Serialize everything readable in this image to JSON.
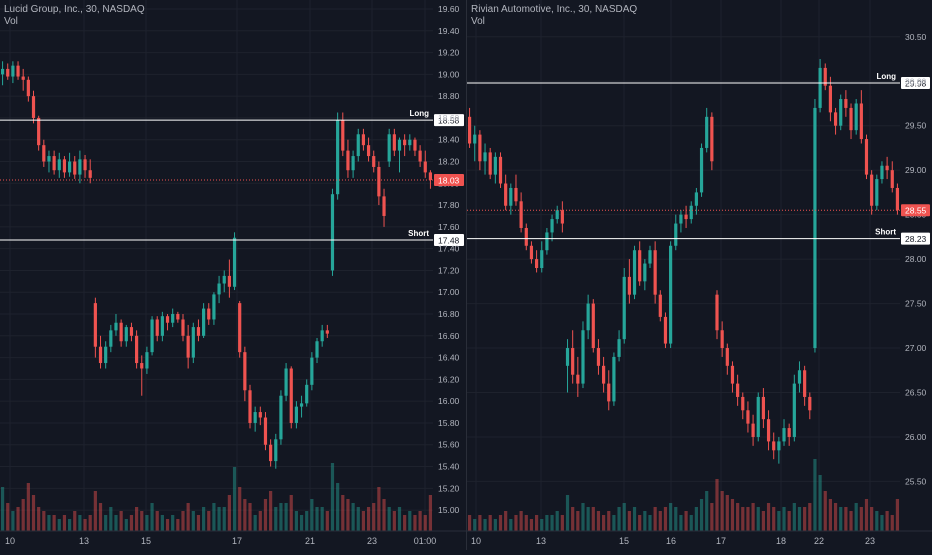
{
  "chart_data": [
    {
      "type": "candlestick",
      "title": "Lucid Group, Inc., 30, NASDAQ",
      "volume_label": "Vol",
      "ylim": [
        14.9,
        19.6
      ],
      "y_ticks": [
        "19.60",
        "19.40",
        "19.20",
        "19.00",
        "18.80",
        "18.60",
        "18.40",
        "18.20",
        "18.00",
        "17.80",
        "17.60",
        "17.40",
        "17.20",
        "17.00",
        "16.80",
        "16.60",
        "16.40",
        "16.20",
        "16.00",
        "15.80",
        "15.60",
        "15.40",
        "15.20",
        "15.00"
      ],
      "x_ticks": [
        "10",
        "13",
        "15",
        "17",
        "21",
        "23",
        "01:00"
      ],
      "levels": [
        {
          "name": "Long",
          "value": 18.58
        },
        {
          "name": "Short",
          "value": 17.48
        }
      ],
      "last_price": 18.03,
      "last_price_label": "18.03",
      "long_label": "18.58",
      "short_label": "17.48",
      "colors": {
        "up": "#26a69a",
        "down": "#ef5350"
      },
      "ohlc": [
        [
          19.0,
          19.12,
          18.9,
          19.05
        ],
        [
          19.05,
          19.1,
          18.95,
          18.98
        ],
        [
          18.98,
          19.12,
          18.92,
          19.08
        ],
        [
          19.08,
          19.12,
          18.95,
          18.98
        ],
        [
          18.98,
          19.05,
          18.85,
          18.95
        ],
        [
          18.95,
          18.98,
          18.75,
          18.8
        ],
        [
          18.8,
          18.85,
          18.55,
          18.6
        ],
        [
          18.6,
          18.62,
          18.3,
          18.35
        ],
        [
          18.35,
          18.4,
          18.15,
          18.2
        ],
        [
          18.2,
          18.3,
          18.1,
          18.25
        ],
        [
          18.25,
          18.3,
          18.08,
          18.12
        ],
        [
          18.12,
          18.28,
          18.05,
          18.22
        ],
        [
          18.22,
          18.25,
          18.05,
          18.1
        ],
        [
          18.1,
          18.28,
          18.06,
          18.2
        ],
        [
          18.2,
          18.25,
          18.04,
          18.08
        ],
        [
          18.08,
          18.3,
          18.0,
          18.22
        ],
        [
          18.22,
          18.26,
          18.05,
          18.12
        ],
        [
          18.12,
          18.22,
          18.0,
          18.05
        ],
        [
          16.9,
          16.95,
          16.4,
          16.5
        ],
        [
          16.5,
          16.6,
          16.3,
          16.35
        ],
        [
          16.35,
          16.55,
          16.3,
          16.5
        ],
        [
          16.5,
          16.7,
          16.45,
          16.65
        ],
        [
          16.65,
          16.8,
          16.6,
          16.72
        ],
        [
          16.72,
          16.75,
          16.5,
          16.55
        ],
        [
          16.55,
          16.7,
          16.5,
          16.68
        ],
        [
          16.68,
          16.72,
          16.55,
          16.6
        ],
        [
          16.6,
          16.65,
          16.3,
          16.35
        ],
        [
          16.35,
          16.42,
          16.05,
          16.3
        ],
        [
          16.3,
          16.5,
          16.25,
          16.45
        ],
        [
          16.45,
          16.78,
          16.42,
          16.75
        ],
        [
          16.75,
          16.78,
          16.55,
          16.6
        ],
        [
          16.6,
          16.82,
          16.55,
          16.78
        ],
        [
          16.78,
          16.8,
          16.65,
          16.72
        ],
        [
          16.72,
          16.85,
          16.68,
          16.8
        ],
        [
          16.8,
          16.82,
          16.72,
          16.75
        ],
        [
          16.75,
          16.8,
          16.55,
          16.6
        ],
        [
          16.6,
          16.7,
          16.3,
          16.4
        ],
        [
          16.4,
          16.72,
          16.35,
          16.68
        ],
        [
          16.68,
          16.75,
          16.55,
          16.6
        ],
        [
          16.6,
          16.9,
          16.58,
          16.85
        ],
        [
          16.85,
          16.9,
          16.7,
          16.75
        ],
        [
          16.75,
          17.0,
          16.7,
          16.98
        ],
        [
          16.98,
          17.15,
          16.9,
          17.08
        ],
        [
          17.08,
          17.2,
          17.0,
          17.15
        ],
        [
          17.15,
          17.3,
          16.95,
          17.05
        ],
        [
          17.05,
          17.55,
          17.02,
          17.5
        ],
        [
          16.9,
          16.92,
          16.4,
          16.45
        ],
        [
          16.45,
          16.5,
          16.0,
          16.1
        ],
        [
          16.1,
          16.15,
          15.75,
          15.8
        ],
        [
          15.8,
          15.95,
          15.72,
          15.9
        ],
        [
          15.9,
          15.95,
          15.78,
          15.85
        ],
        [
          15.85,
          15.9,
          15.55,
          15.6
        ],
        [
          15.6,
          15.65,
          15.4,
          15.45
        ],
        [
          15.45,
          15.7,
          15.38,
          15.65
        ],
        [
          15.65,
          16.1,
          15.6,
          16.05
        ],
        [
          16.05,
          16.35,
          16.0,
          16.3
        ],
        [
          16.3,
          16.32,
          15.75,
          15.8
        ],
        [
          15.8,
          16.0,
          15.75,
          15.95
        ],
        [
          15.95,
          16.05,
          15.85,
          15.98
        ],
        [
          15.98,
          16.2,
          15.95,
          16.15
        ],
        [
          16.15,
          16.45,
          16.1,
          16.4
        ],
        [
          16.4,
          16.58,
          16.35,
          16.55
        ],
        [
          16.55,
          16.7,
          16.5,
          16.65
        ],
        [
          16.65,
          16.7,
          16.58,
          16.62
        ],
        [
          17.2,
          17.95,
          17.15,
          17.9
        ],
        [
          17.9,
          18.65,
          17.85,
          18.58
        ],
        [
          18.58,
          18.65,
          18.25,
          18.3
        ],
        [
          18.3,
          18.4,
          18.05,
          18.12
        ],
        [
          18.12,
          18.3,
          18.05,
          18.25
        ],
        [
          18.25,
          18.5,
          18.2,
          18.45
        ],
        [
          18.45,
          18.5,
          18.3,
          18.35
        ],
        [
          18.35,
          18.42,
          18.2,
          18.25
        ],
        [
          18.25,
          18.3,
          18.1,
          18.15
        ],
        [
          18.15,
          18.2,
          17.8,
          17.88
        ],
        [
          17.88,
          17.95,
          17.6,
          17.7
        ],
        [
          18.2,
          18.5,
          18.15,
          18.45
        ],
        [
          18.45,
          18.5,
          18.25,
          18.3
        ],
        [
          18.3,
          18.42,
          18.1,
          18.4
        ],
        [
          18.4,
          18.45,
          18.25,
          18.35
        ],
        [
          18.35,
          18.45,
          18.3,
          18.4
        ],
        [
          18.4,
          18.42,
          18.25,
          18.3
        ],
        [
          18.3,
          18.35,
          18.15,
          18.2
        ],
        [
          18.2,
          18.3,
          18.05,
          18.1
        ],
        [
          18.1,
          18.12,
          17.95,
          18.03
        ]
      ],
      "volume": [
        0.55,
        0.35,
        0.25,
        0.3,
        0.4,
        0.6,
        0.45,
        0.3,
        0.25,
        0.2,
        0.2,
        0.15,
        0.2,
        0.15,
        0.25,
        0.2,
        0.15,
        0.2,
        0.5,
        0.35,
        0.2,
        0.3,
        0.2,
        0.25,
        0.15,
        0.2,
        0.3,
        0.25,
        0.2,
        0.35,
        0.25,
        0.2,
        0.15,
        0.2,
        0.15,
        0.25,
        0.35,
        0.25,
        0.2,
        0.3,
        0.25,
        0.35,
        0.3,
        0.3,
        0.45,
        0.8,
        0.55,
        0.4,
        0.35,
        0.2,
        0.25,
        0.4,
        0.5,
        0.3,
        0.35,
        0.35,
        0.45,
        0.25,
        0.2,
        0.25,
        0.4,
        0.3,
        0.3,
        0.25,
        0.85,
        0.6,
        0.45,
        0.4,
        0.35,
        0.3,
        0.25,
        0.3,
        0.35,
        0.55,
        0.4,
        0.3,
        0.25,
        0.3,
        0.2,
        0.25,
        0.2,
        0.25,
        0.2,
        0.45
      ]
    },
    {
      "type": "candlestick",
      "title": "Rivian Automotive, Inc., 30, NASDAQ",
      "volume_label": "Vol",
      "ylim": [
        25.1,
        30.7
      ],
      "y_ticks": [
        "30.50",
        "30.00",
        "29.50",
        "29.00",
        "28.50",
        "28.00",
        "27.50",
        "27.00",
        "26.50",
        "26.00",
        "25.50"
      ],
      "x_ticks": [
        "10",
        "13",
        "15",
        "16",
        "17",
        "18",
        "22",
        "23"
      ],
      "levels": [
        {
          "name": "Long",
          "value": 29.98
        },
        {
          "name": "Short",
          "value": 28.23
        }
      ],
      "last_price": 28.55,
      "last_price_label": "28.55",
      "long_label": "29.98",
      "short_label": "28.23",
      "colors": {
        "up": "#26a69a",
        "down": "#ef5350"
      },
      "ohlc": [
        [
          29.6,
          29.7,
          29.25,
          29.3
        ],
        [
          29.3,
          29.5,
          29.1,
          29.4
        ],
        [
          29.4,
          29.45,
          29.0,
          29.1
        ],
        [
          29.1,
          29.3,
          28.95,
          29.2
        ],
        [
          29.2,
          29.25,
          28.9,
          28.95
        ],
        [
          28.95,
          29.2,
          28.85,
          29.15
        ],
        [
          29.15,
          29.2,
          28.8,
          28.85
        ],
        [
          28.85,
          28.95,
          28.55,
          28.6
        ],
        [
          28.6,
          28.85,
          28.5,
          28.8
        ],
        [
          28.8,
          28.95,
          28.6,
          28.65
        ],
        [
          28.65,
          28.75,
          28.3,
          28.35
        ],
        [
          28.35,
          28.4,
          28.1,
          28.15
        ],
        [
          28.15,
          28.2,
          27.95,
          28.0
        ],
        [
          28.0,
          28.1,
          27.85,
          27.9
        ],
        [
          27.9,
          28.2,
          27.85,
          28.1
        ],
        [
          28.1,
          28.35,
          28.05,
          28.3
        ],
        [
          28.3,
          28.5,
          28.2,
          28.45
        ],
        [
          28.45,
          28.6,
          28.4,
          28.55
        ],
        [
          28.55,
          28.65,
          28.3,
          28.4
        ],
        [
          26.8,
          27.1,
          26.5,
          27.0
        ],
        [
          27.0,
          27.2,
          26.6,
          26.7
        ],
        [
          26.7,
          26.9,
          26.45,
          26.6
        ],
        [
          26.6,
          27.3,
          26.55,
          27.2
        ],
        [
          27.2,
          27.6,
          27.1,
          27.5
        ],
        [
          27.5,
          27.55,
          26.95,
          27.0
        ],
        [
          27.0,
          27.1,
          26.7,
          26.8
        ],
        [
          26.8,
          26.9,
          26.5,
          26.6
        ],
        [
          26.6,
          26.75,
          26.3,
          26.4
        ],
        [
          26.4,
          26.95,
          26.35,
          26.9
        ],
        [
          26.9,
          27.2,
          26.85,
          27.1
        ],
        [
          27.1,
          27.9,
          27.05,
          27.8
        ],
        [
          27.8,
          28.0,
          27.5,
          27.6
        ],
        [
          27.6,
          28.15,
          27.55,
          28.1
        ],
        [
          28.1,
          28.2,
          27.7,
          27.75
        ],
        [
          27.75,
          28.0,
          27.65,
          27.95
        ],
        [
          27.95,
          28.15,
          27.9,
          28.1
        ],
        [
          28.1,
          28.2,
          27.5,
          27.6
        ],
        [
          27.6,
          27.65,
          27.3,
          27.35
        ],
        [
          27.35,
          27.4,
          27.0,
          27.05
        ],
        [
          27.05,
          28.2,
          27.0,
          28.15
        ],
        [
          28.15,
          28.5,
          28.1,
          28.4
        ],
        [
          28.4,
          28.55,
          28.3,
          28.5
        ],
        [
          28.5,
          28.6,
          28.35,
          28.45
        ],
        [
          28.45,
          28.65,
          28.4,
          28.6
        ],
        [
          28.6,
          28.8,
          28.5,
          28.75
        ],
        [
          28.75,
          29.3,
          28.7,
          29.25
        ],
        [
          29.25,
          29.7,
          29.2,
          29.6
        ],
        [
          29.6,
          29.65,
          29.0,
          29.1
        ],
        [
          27.6,
          27.65,
          27.1,
          27.2
        ],
        [
          27.2,
          27.3,
          26.9,
          27.0
        ],
        [
          27.0,
          27.05,
          26.7,
          26.8
        ],
        [
          26.8,
          26.85,
          26.5,
          26.6
        ],
        [
          26.6,
          26.7,
          26.35,
          26.45
        ],
        [
          26.45,
          26.5,
          26.2,
          26.3
        ],
        [
          26.3,
          26.4,
          26.05,
          26.15
        ],
        [
          26.15,
          26.25,
          25.9,
          26.0
        ],
        [
          26.0,
          26.5,
          25.95,
          26.45
        ],
        [
          26.45,
          26.55,
          26.1,
          26.2
        ],
        [
          26.2,
          26.3,
          25.85,
          25.95
        ],
        [
          25.95,
          26.05,
          25.75,
          25.85
        ],
        [
          25.85,
          26.0,
          25.7,
          25.95
        ],
        [
          25.95,
          26.2,
          25.9,
          26.1
        ],
        [
          26.1,
          26.15,
          25.9,
          26.0
        ],
        [
          26.0,
          26.7,
          25.95,
          26.6
        ],
        [
          26.6,
          26.85,
          26.5,
          26.75
        ],
        [
          26.75,
          26.8,
          26.35,
          26.45
        ],
        [
          26.45,
          26.5,
          26.2,
          26.3
        ],
        [
          27.0,
          29.8,
          26.95,
          29.7
        ],
        [
          29.7,
          30.25,
          29.65,
          30.15
        ],
        [
          30.15,
          30.2,
          29.9,
          29.95
        ],
        [
          29.95,
          30.05,
          29.55,
          29.65
        ],
        [
          29.65,
          29.7,
          29.4,
          29.5
        ],
        [
          29.5,
          29.85,
          29.45,
          29.8
        ],
        [
          29.8,
          29.9,
          29.6,
          29.7
        ],
        [
          29.7,
          29.75,
          29.35,
          29.45
        ],
        [
          29.45,
          29.8,
          29.4,
          29.75
        ],
        [
          29.75,
          29.9,
          29.3,
          29.35
        ],
        [
          29.35,
          29.4,
          28.9,
          28.95
        ],
        [
          28.95,
          29.0,
          28.5,
          28.6
        ],
        [
          28.6,
          28.95,
          28.55,
          28.9
        ],
        [
          28.9,
          29.1,
          28.85,
          29.05
        ],
        [
          29.05,
          29.15,
          28.9,
          29.0
        ],
        [
          29.0,
          29.1,
          28.75,
          28.8
        ],
        [
          28.8,
          28.85,
          28.5,
          28.55
        ]
      ],
      "volume": [
        0.2,
        0.15,
        0.2,
        0.15,
        0.2,
        0.15,
        0.2,
        0.25,
        0.15,
        0.2,
        0.25,
        0.2,
        0.15,
        0.2,
        0.15,
        0.2,
        0.2,
        0.25,
        0.2,
        0.45,
        0.3,
        0.25,
        0.35,
        0.3,
        0.3,
        0.25,
        0.2,
        0.25,
        0.2,
        0.3,
        0.35,
        0.25,
        0.3,
        0.2,
        0.25,
        0.2,
        0.3,
        0.25,
        0.3,
        0.35,
        0.3,
        0.2,
        0.25,
        0.2,
        0.3,
        0.4,
        0.5,
        0.35,
        0.65,
        0.5,
        0.45,
        0.4,
        0.35,
        0.3,
        0.3,
        0.35,
        0.3,
        0.25,
        0.35,
        0.3,
        0.25,
        0.3,
        0.25,
        0.35,
        0.3,
        0.3,
        0.35,
        0.9,
        0.7,
        0.5,
        0.4,
        0.35,
        0.3,
        0.3,
        0.25,
        0.35,
        0.3,
        0.4,
        0.3,
        0.25,
        0.2,
        0.25,
        0.2,
        0.4
      ]
    }
  ]
}
